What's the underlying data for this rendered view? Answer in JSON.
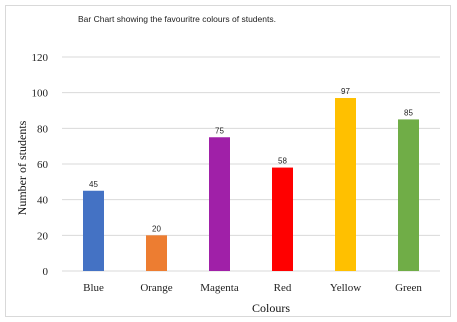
{
  "chart_data": {
    "type": "bar",
    "title": "Bar Chart showing the favouritre colours of students.",
    "xlabel": "Colours",
    "ylabel": "Number of students",
    "categories": [
      "Blue",
      "Orange",
      "Magenta",
      "Red",
      "Yellow",
      "Green"
    ],
    "values": [
      45,
      20,
      75,
      58,
      97,
      85
    ],
    "colors": [
      "#4472c4",
      "#ed7d31",
      "#a020a8",
      "#ff0000",
      "#ffc000",
      "#70ad47"
    ],
    "ylim": [
      0,
      120
    ],
    "yticks": [
      0,
      20,
      40,
      60,
      80,
      100,
      120
    ],
    "grid": true
  }
}
